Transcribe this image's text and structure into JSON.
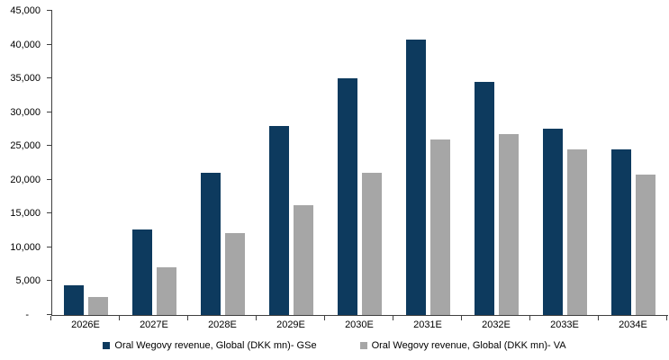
{
  "chart_data": {
    "type": "bar",
    "title": "",
    "xlabel": "",
    "ylabel": "",
    "ylim": [
      0,
      45000
    ],
    "ytick_step": 5000,
    "ytick_labels": [
      "-",
      "5,000",
      "10,000",
      "15,000",
      "20,000",
      "25,000",
      "30,000",
      "35,000",
      "40,000",
      "45,000"
    ],
    "grid": false,
    "legend_position": "bottom",
    "categories": [
      "2026E",
      "2027E",
      "2028E",
      "2029E",
      "2030E",
      "2031E",
      "2032E",
      "2033E",
      "2034E"
    ],
    "series": [
      {
        "name": "Oral Wegovy revenue, Global (DKK mn)- GSe",
        "short": "GSe",
        "color": "#0d3a5e",
        "values": [
          4400,
          12600,
          21000,
          27900,
          35000,
          40800,
          34500,
          27500,
          24500
        ]
      },
      {
        "name": "Oral Wegovy revenue, Global (DKK mn)- VA",
        "short": "VA",
        "color": "#a6a6a6",
        "values": [
          2700,
          7000,
          12100,
          16200,
          21100,
          26000,
          26800,
          24500,
          20800
        ]
      }
    ]
  },
  "colors": {
    "axis": "#404040",
    "text": "#000000",
    "background": "#ffffff"
  }
}
